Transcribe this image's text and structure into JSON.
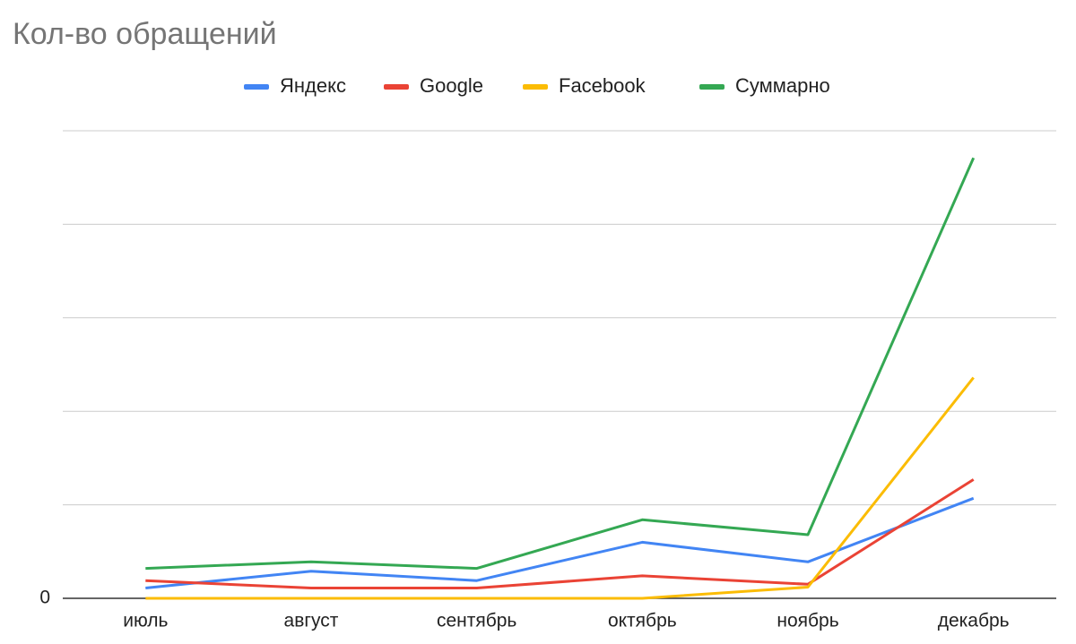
{
  "chart_data": {
    "type": "line",
    "title": "Кол-во обращений",
    "categories": [
      "июль",
      "август",
      "сентябрь",
      "октябрь",
      "ноябрь",
      "декабрь"
    ],
    "series": [
      {
        "name": "Яндекс",
        "color": "#4285f4",
        "values": [
          1.1,
          2.9,
          1.9,
          6.0,
          3.9,
          10.7
        ]
      },
      {
        "name": "Google",
        "color": "#ea4335",
        "values": [
          1.9,
          1.1,
          1.1,
          2.4,
          1.5,
          12.7
        ]
      },
      {
        "name": "Facebook",
        "color": "#fbbc04",
        "values": [
          0,
          0,
          0,
          0,
          1.2,
          23.6
        ]
      },
      {
        "name": "Суммарно",
        "color": "#34a853",
        "values": [
          3.2,
          3.9,
          3.2,
          8.4,
          6.8,
          47.1
        ]
      }
    ],
    "ylim": [
      0,
      50
    ],
    "yticks": [
      0
    ],
    "gridlines": [
      10,
      20,
      30,
      40,
      50
    ],
    "grid": true,
    "legend": "top"
  }
}
